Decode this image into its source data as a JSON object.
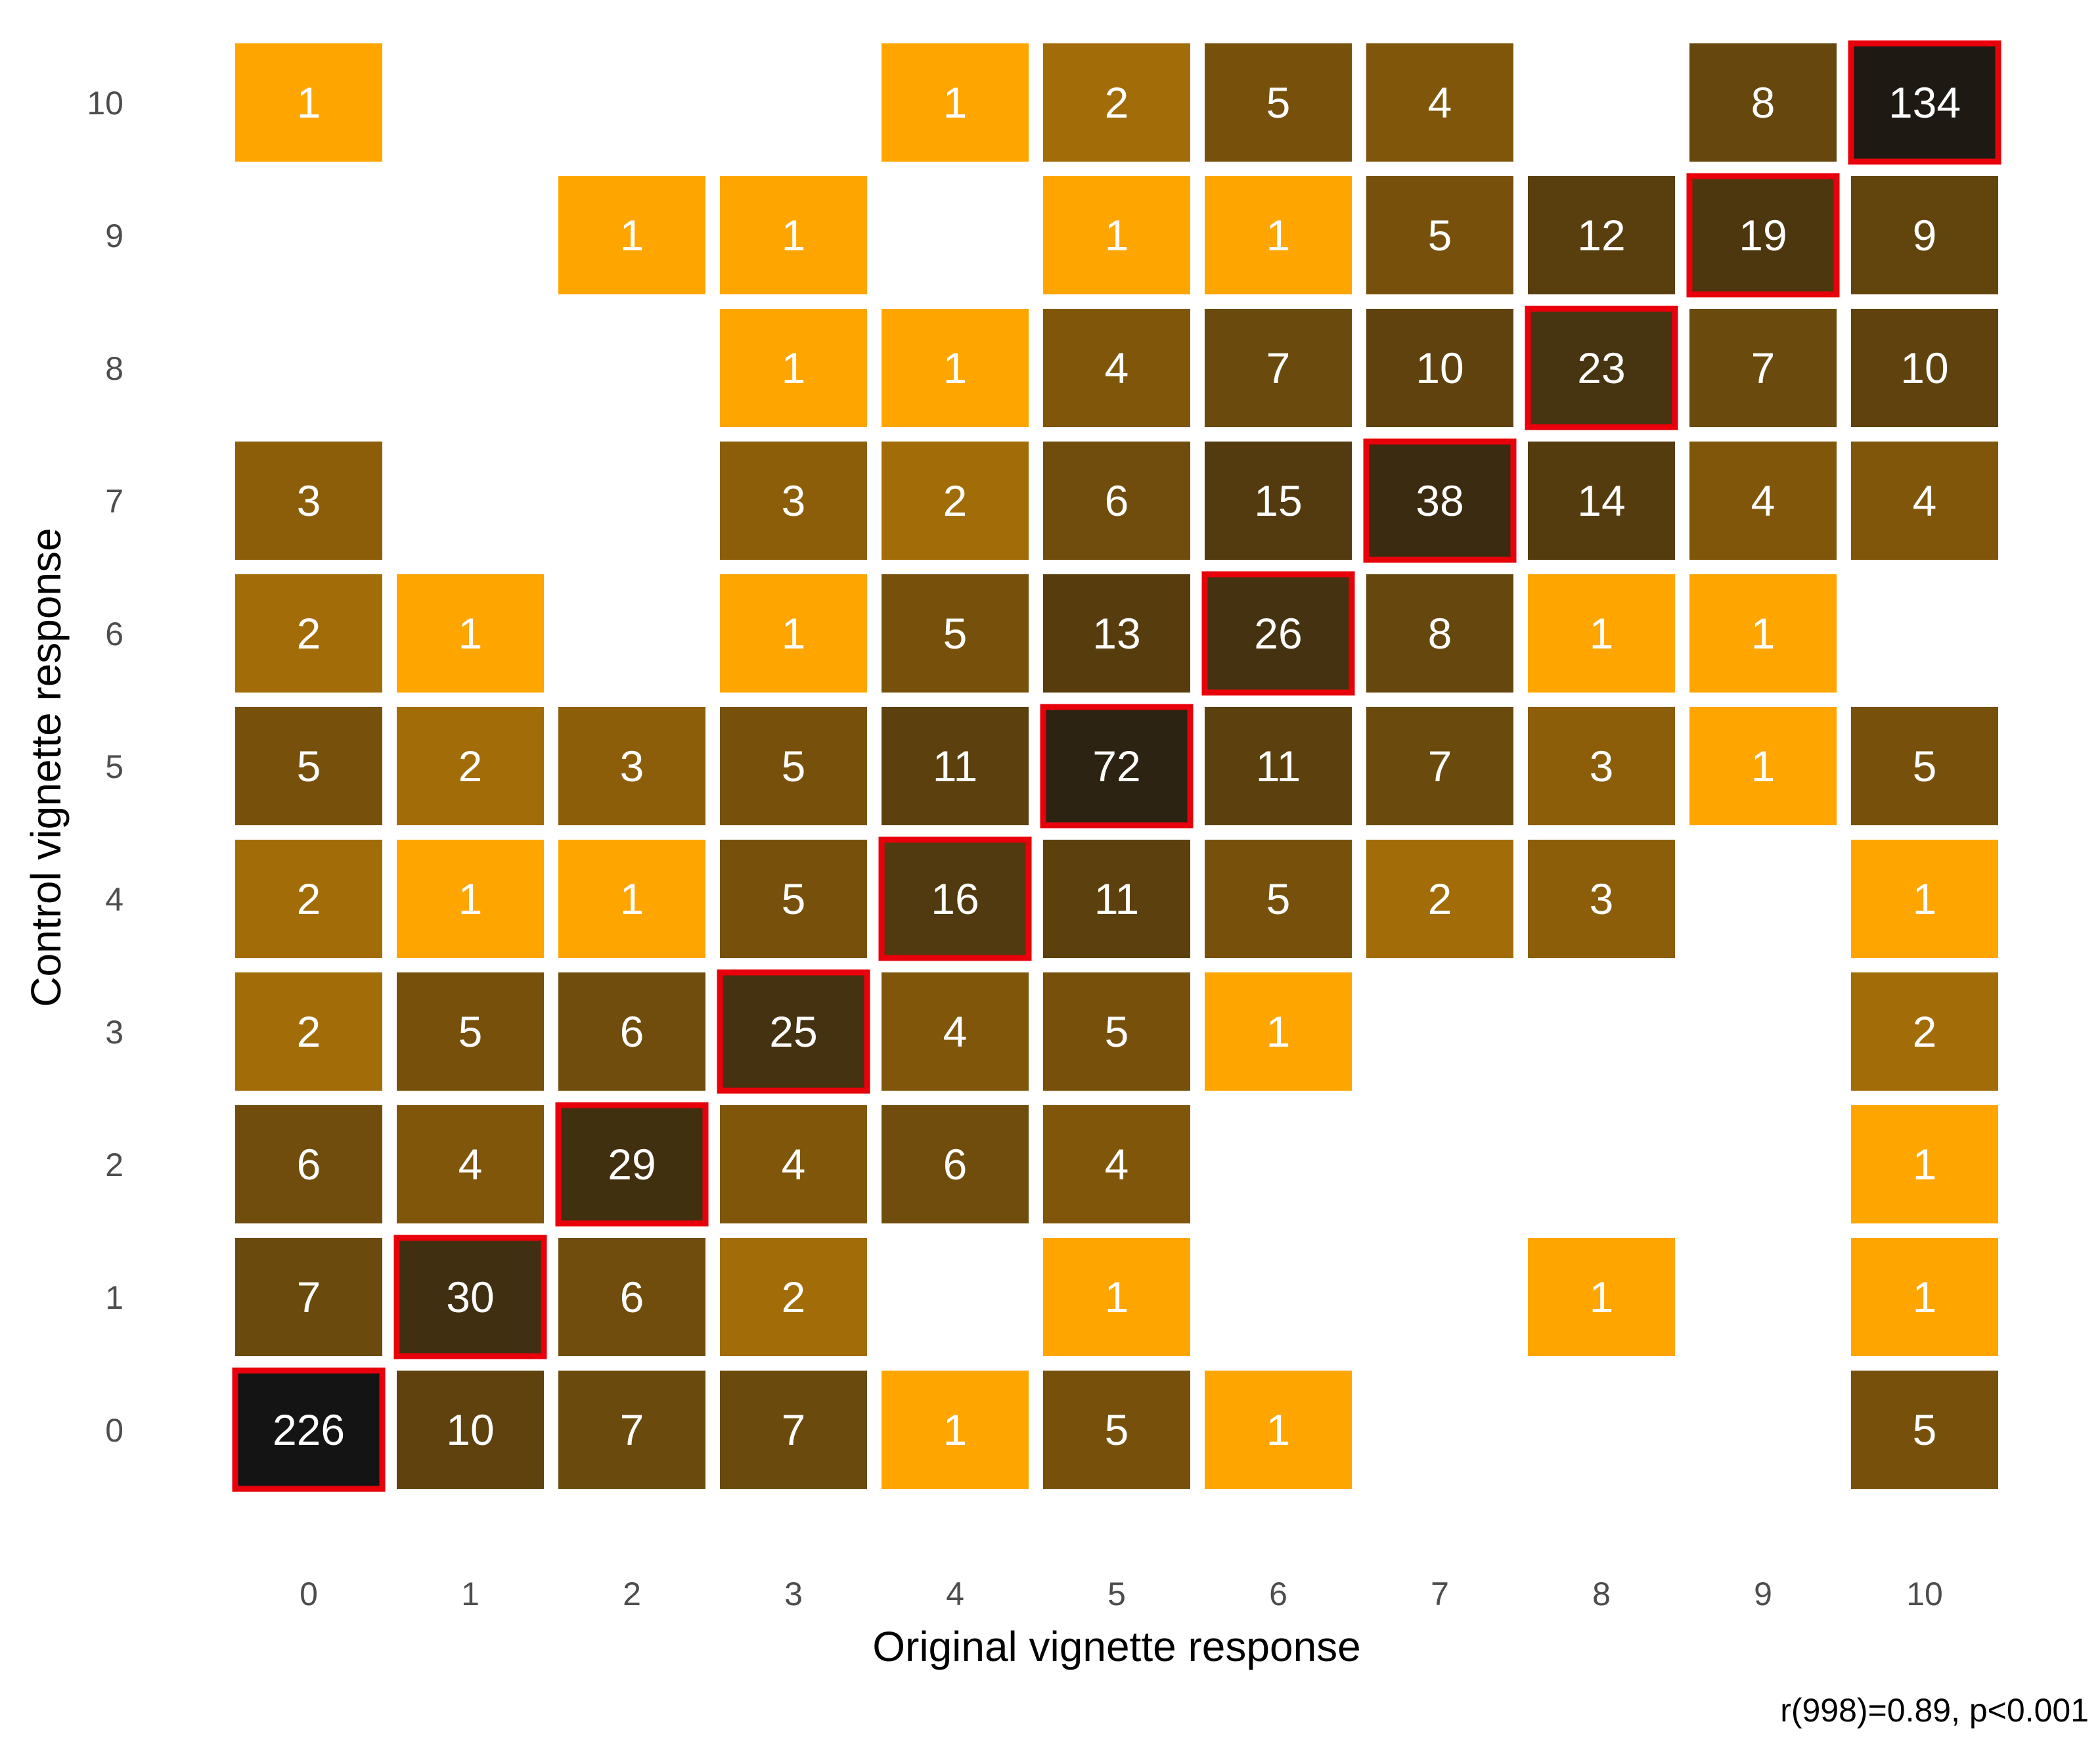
{
  "chart_data": {
    "type": "heatmap",
    "xlabel": "Original vignette response",
    "ylabel": "Control vignette response",
    "annotation": "r(998)=0.89, p<0.001",
    "x_ticks": [
      "0",
      "1",
      "2",
      "3",
      "4",
      "5",
      "6",
      "7",
      "8",
      "9",
      "10"
    ],
    "y_ticks": [
      "0",
      "1",
      "2",
      "3",
      "4",
      "5",
      "6",
      "7",
      "8",
      "9",
      "10"
    ],
    "highlight": "diagonal cells (original = control) outlined in red",
    "colors": {
      "low": "#FFA500",
      "high": "#141414",
      "highlight_border": "#E8000B"
    },
    "cells": [
      {
        "x": 0,
        "y": 10,
        "count": 1
      },
      {
        "x": 4,
        "y": 10,
        "count": 1
      },
      {
        "x": 5,
        "y": 10,
        "count": 2
      },
      {
        "x": 6,
        "y": 10,
        "count": 5
      },
      {
        "x": 7,
        "y": 10,
        "count": 4
      },
      {
        "x": 9,
        "y": 10,
        "count": 8
      },
      {
        "x": 10,
        "y": 10,
        "count": 134
      },
      {
        "x": 2,
        "y": 9,
        "count": 1
      },
      {
        "x": 3,
        "y": 9,
        "count": 1
      },
      {
        "x": 5,
        "y": 9,
        "count": 1
      },
      {
        "x": 6,
        "y": 9,
        "count": 1
      },
      {
        "x": 7,
        "y": 9,
        "count": 5
      },
      {
        "x": 8,
        "y": 9,
        "count": 12
      },
      {
        "x": 9,
        "y": 9,
        "count": 19
      },
      {
        "x": 10,
        "y": 9,
        "count": 9
      },
      {
        "x": 3,
        "y": 8,
        "count": 1
      },
      {
        "x": 4,
        "y": 8,
        "count": 1
      },
      {
        "x": 5,
        "y": 8,
        "count": 4
      },
      {
        "x": 6,
        "y": 8,
        "count": 7
      },
      {
        "x": 7,
        "y": 8,
        "count": 10
      },
      {
        "x": 8,
        "y": 8,
        "count": 23
      },
      {
        "x": 9,
        "y": 8,
        "count": 7
      },
      {
        "x": 10,
        "y": 8,
        "count": 10
      },
      {
        "x": 0,
        "y": 7,
        "count": 3
      },
      {
        "x": 3,
        "y": 7,
        "count": 3
      },
      {
        "x": 4,
        "y": 7,
        "count": 2
      },
      {
        "x": 5,
        "y": 7,
        "count": 6
      },
      {
        "x": 6,
        "y": 7,
        "count": 15
      },
      {
        "x": 7,
        "y": 7,
        "count": 38
      },
      {
        "x": 8,
        "y": 7,
        "count": 14
      },
      {
        "x": 9,
        "y": 7,
        "count": 4
      },
      {
        "x": 10,
        "y": 7,
        "count": 4
      },
      {
        "x": 0,
        "y": 6,
        "count": 2
      },
      {
        "x": 1,
        "y": 6,
        "count": 1
      },
      {
        "x": 3,
        "y": 6,
        "count": 1
      },
      {
        "x": 4,
        "y": 6,
        "count": 5
      },
      {
        "x": 5,
        "y": 6,
        "count": 13
      },
      {
        "x": 6,
        "y": 6,
        "count": 26
      },
      {
        "x": 7,
        "y": 6,
        "count": 8
      },
      {
        "x": 8,
        "y": 6,
        "count": 1
      },
      {
        "x": 9,
        "y": 6,
        "count": 1
      },
      {
        "x": 0,
        "y": 5,
        "count": 5
      },
      {
        "x": 1,
        "y": 5,
        "count": 2
      },
      {
        "x": 2,
        "y": 5,
        "count": 3
      },
      {
        "x": 3,
        "y": 5,
        "count": 5
      },
      {
        "x": 4,
        "y": 5,
        "count": 11
      },
      {
        "x": 5,
        "y": 5,
        "count": 72
      },
      {
        "x": 6,
        "y": 5,
        "count": 11
      },
      {
        "x": 7,
        "y": 5,
        "count": 7
      },
      {
        "x": 8,
        "y": 5,
        "count": 3
      },
      {
        "x": 9,
        "y": 5,
        "count": 1
      },
      {
        "x": 10,
        "y": 5,
        "count": 5
      },
      {
        "x": 0,
        "y": 4,
        "count": 2
      },
      {
        "x": 1,
        "y": 4,
        "count": 1
      },
      {
        "x": 2,
        "y": 4,
        "count": 1
      },
      {
        "x": 3,
        "y": 4,
        "count": 5
      },
      {
        "x": 4,
        "y": 4,
        "count": 16
      },
      {
        "x": 5,
        "y": 4,
        "count": 11
      },
      {
        "x": 6,
        "y": 4,
        "count": 5
      },
      {
        "x": 7,
        "y": 4,
        "count": 2
      },
      {
        "x": 8,
        "y": 4,
        "count": 3
      },
      {
        "x": 10,
        "y": 4,
        "count": 1
      },
      {
        "x": 0,
        "y": 3,
        "count": 2
      },
      {
        "x": 1,
        "y": 3,
        "count": 5
      },
      {
        "x": 2,
        "y": 3,
        "count": 6
      },
      {
        "x": 3,
        "y": 3,
        "count": 25
      },
      {
        "x": 4,
        "y": 3,
        "count": 4
      },
      {
        "x": 5,
        "y": 3,
        "count": 5
      },
      {
        "x": 6,
        "y": 3,
        "count": 1
      },
      {
        "x": 10,
        "y": 3,
        "count": 2
      },
      {
        "x": 0,
        "y": 2,
        "count": 6
      },
      {
        "x": 1,
        "y": 2,
        "count": 4
      },
      {
        "x": 2,
        "y": 2,
        "count": 29
      },
      {
        "x": 3,
        "y": 2,
        "count": 4
      },
      {
        "x": 4,
        "y": 2,
        "count": 6
      },
      {
        "x": 5,
        "y": 2,
        "count": 4
      },
      {
        "x": 10,
        "y": 2,
        "count": 1
      },
      {
        "x": 0,
        "y": 1,
        "count": 7
      },
      {
        "x": 1,
        "y": 1,
        "count": 30
      },
      {
        "x": 2,
        "y": 1,
        "count": 6
      },
      {
        "x": 3,
        "y": 1,
        "count": 2
      },
      {
        "x": 5,
        "y": 1,
        "count": 1
      },
      {
        "x": 8,
        "y": 1,
        "count": 1
      },
      {
        "x": 10,
        "y": 1,
        "count": 1
      },
      {
        "x": 0,
        "y": 0,
        "count": 226
      },
      {
        "x": 1,
        "y": 0,
        "count": 10
      },
      {
        "x": 2,
        "y": 0,
        "count": 7
      },
      {
        "x": 3,
        "y": 0,
        "count": 7
      },
      {
        "x": 4,
        "y": 0,
        "count": 1
      },
      {
        "x": 5,
        "y": 0,
        "count": 5
      },
      {
        "x": 6,
        "y": 0,
        "count": 1
      },
      {
        "x": 10,
        "y": 0,
        "count": 5
      }
    ]
  }
}
